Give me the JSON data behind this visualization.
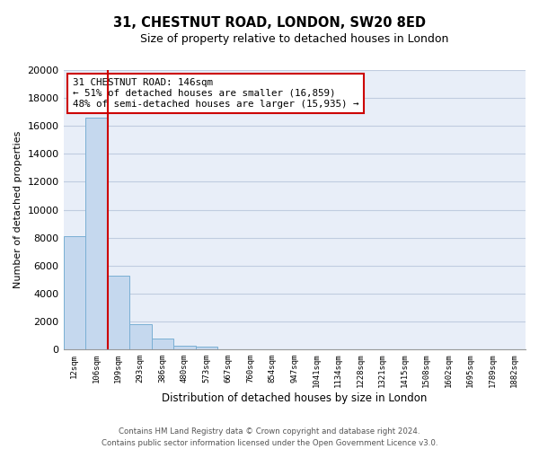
{
  "title": "31, CHESTNUT ROAD, LONDON, SW20 8ED",
  "subtitle": "Size of property relative to detached houses in London",
  "xlabel": "Distribution of detached houses by size in London",
  "ylabel": "Number of detached properties",
  "bar_color": "#c5d8ee",
  "bar_edge_color": "#7aafd4",
  "bg_color": "#e8eef8",
  "grid_color": "#c0cce0",
  "annotation_box_color": "#cc0000",
  "vline_color": "#cc0000",
  "categories": [
    "12sqm",
    "106sqm",
    "199sqm",
    "293sqm",
    "386sqm",
    "480sqm",
    "573sqm",
    "667sqm",
    "760sqm",
    "854sqm",
    "947sqm",
    "1041sqm",
    "1134sqm",
    "1228sqm",
    "1321sqm",
    "1415sqm",
    "1508sqm",
    "1602sqm",
    "1695sqm",
    "1789sqm",
    "1882sqm"
  ],
  "bar_values": [
    8100,
    16600,
    5300,
    1800,
    780,
    280,
    200,
    0,
    0,
    0,
    0,
    0,
    0,
    0,
    0,
    0,
    0,
    0,
    0,
    0,
    0
  ],
  "ylim": [
    0,
    20000
  ],
  "yticks": [
    0,
    2000,
    4000,
    6000,
    8000,
    10000,
    12000,
    14000,
    16000,
    18000,
    20000
  ],
  "property_name": "31 CHESTNUT ROAD: 146sqm",
  "ann_line1": "← 51% of detached houses are smaller (16,859)",
  "ann_line2": "48% of semi-detached houses are larger (15,935) →",
  "vline_position": 1.5,
  "footer1": "Contains HM Land Registry data © Crown copyright and database right 2024.",
  "footer2": "Contains public sector information licensed under the Open Government Licence v3.0."
}
